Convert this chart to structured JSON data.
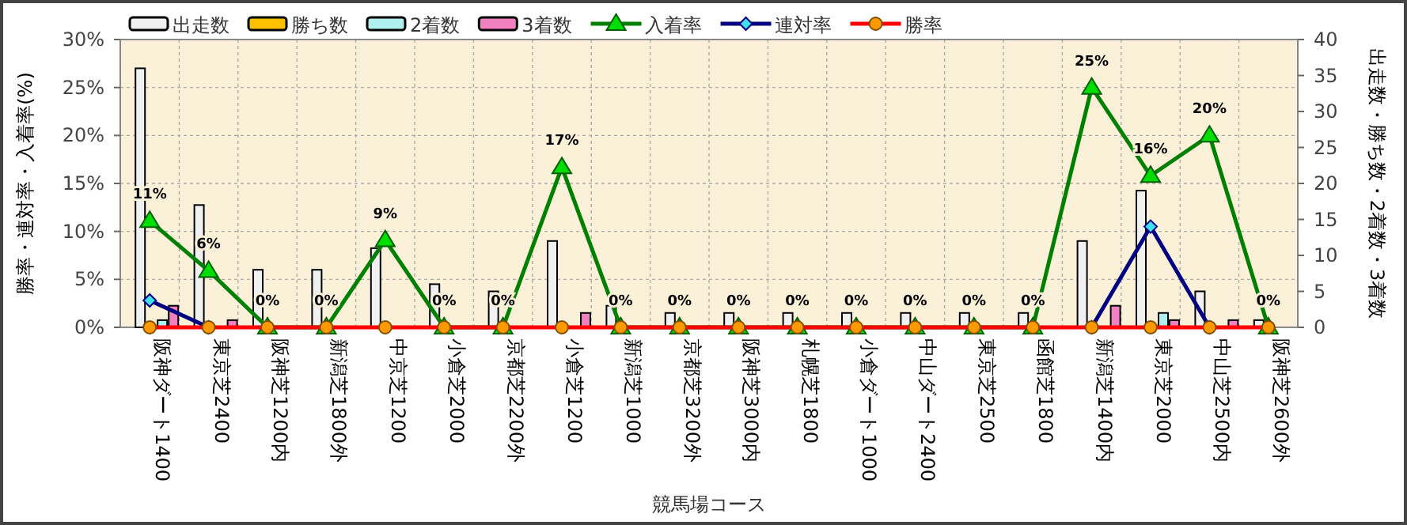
{
  "chart_data": {
    "type": "bar",
    "categories": [
      "阪神ダート1400",
      "東京芝2400",
      "阪神芝1200内",
      "新潟芝1800外",
      "中京芝1200",
      "小倉芝2000",
      "京都芝2200外",
      "小倉芝1200",
      "新潟芝1000",
      "京都芝3200外",
      "阪神芝3000内",
      "札幌芝1800",
      "小倉ダート1000",
      "中山ダート2400",
      "東京芝2500",
      "函館芝1800",
      "新潟芝1400内",
      "東京芝2000",
      "中山芝2500内",
      "阪神芝2600外"
    ],
    "series": [
      {
        "name": "出走数",
        "axis": "y2",
        "color": "#f0f0f0",
        "values": [
          36,
          17,
          8,
          8,
          11,
          6,
          5,
          12,
          3,
          2,
          2,
          2,
          2,
          2,
          2,
          2,
          12,
          19,
          5,
          1
        ]
      },
      {
        "name": "勝ち数",
        "axis": "y2",
        "color": "#ffc000",
        "values": [
          0,
          0,
          0,
          0,
          0,
          0,
          0,
          0,
          0,
          0,
          0,
          0,
          0,
          0,
          0,
          0,
          0,
          0,
          0,
          0
        ]
      },
      {
        "name": "2着数",
        "axis": "y2",
        "color": "#aef0f0",
        "values": [
          1,
          0,
          0,
          0,
          0,
          0,
          0,
          0,
          0,
          0,
          0,
          0,
          0,
          0,
          0,
          0,
          0,
          2,
          0,
          0
        ]
      },
      {
        "name": "3着数",
        "axis": "y2",
        "color": "#f080c0",
        "values": [
          3,
          1,
          0,
          0,
          0,
          0,
          0,
          2,
          0,
          0,
          0,
          0,
          0,
          0,
          0,
          0,
          3,
          1,
          1,
          0
        ]
      },
      {
        "name": "入着率",
        "type": "line",
        "axis": "y",
        "color": "#008000",
        "marker": "triangle",
        "values": [
          11.1,
          5.9,
          0,
          0,
          9.1,
          0,
          0,
          16.7,
          0,
          0,
          0,
          0,
          0,
          0,
          0,
          0,
          25,
          15.8,
          20,
          0
        ],
        "value_labels": [
          "11%",
          "6%",
          "0%",
          "0%",
          "9%",
          "0%",
          "0%",
          "17%",
          "0%",
          "0%",
          "0%",
          "0%",
          "0%",
          "0%",
          "0%",
          "0%",
          "25%",
          "16%",
          "20%",
          "0%"
        ]
      },
      {
        "name": "連対率",
        "type": "line",
        "axis": "y",
        "color": "#000080",
        "marker": "diamond",
        "values": [
          2.8,
          0,
          null,
          null,
          null,
          null,
          null,
          null,
          null,
          null,
          null,
          null,
          null,
          null,
          null,
          null,
          0,
          10.5,
          0,
          null
        ]
      },
      {
        "name": "勝率",
        "type": "line",
        "axis": "y",
        "color": "#ff0000",
        "marker": "circle",
        "values": [
          0,
          0,
          0,
          0,
          0,
          0,
          0,
          0,
          0,
          0,
          0,
          0,
          0,
          0,
          0,
          0,
          0,
          0,
          0,
          0
        ]
      }
    ],
    "xlabel": "競馬場コース",
    "ylabel": "勝率・連対率・入着率(%)",
    "y2label": "出走数・勝ち数・2着数・3着数",
    "ylim": [
      0,
      30
    ],
    "yticks": [
      {
        "value": 0,
        "label": "0%"
      },
      {
        "value": 5,
        "label": "5%"
      },
      {
        "value": 10,
        "label": "10%"
      },
      {
        "value": 15,
        "label": "15%"
      },
      {
        "value": 20,
        "label": "20%"
      },
      {
        "value": 25,
        "label": "25%"
      },
      {
        "value": 30,
        "label": "30%"
      }
    ],
    "y2lim": [
      0,
      40
    ],
    "y2ticks": [
      0,
      5,
      10,
      15,
      20,
      25,
      30,
      35,
      40
    ],
    "grid": true,
    "legend": "top"
  }
}
